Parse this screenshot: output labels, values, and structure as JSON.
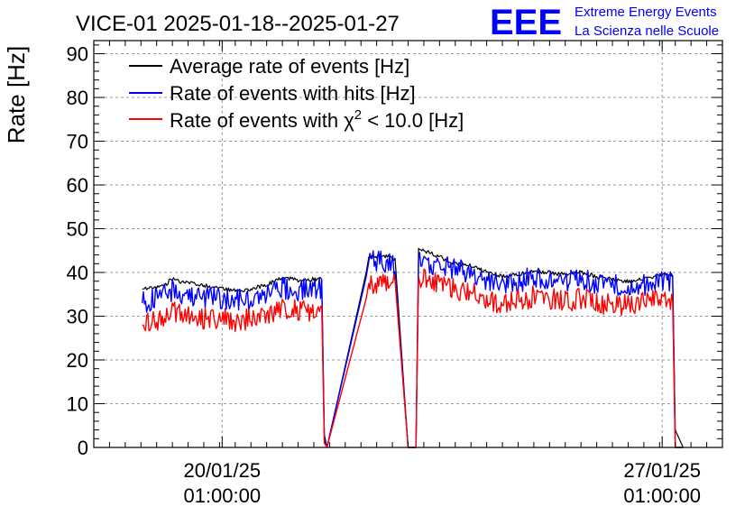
{
  "header": {
    "title": "VICE-01 2025-01-18--2025-01-27",
    "logo_text": "EEE",
    "logo_line1": "Extreme Energy Events",
    "logo_line2": "La Scienza nelle Scuole"
  },
  "colors": {
    "average": "#000000",
    "hits": "#0000ff",
    "chi2": "#ff0000",
    "grid": "#999999",
    "logo": "#0000ff"
  },
  "chart_data": {
    "type": "line",
    "title": "VICE-01 2025-01-18--2025-01-27",
    "xlabel": "",
    "ylabel": "Rate [Hz]",
    "ylim": [
      0,
      93
    ],
    "xlim": [
      "2025-01-18 00:00",
      "2025-01-28 00:00"
    ],
    "grid": true,
    "legend_position": "top-left",
    "yticks": [
      0,
      10,
      20,
      30,
      40,
      50,
      60,
      70,
      80,
      90
    ],
    "xticks": [
      {
        "x": "2025-01-20 01:00",
        "label_date": "20/01/25",
        "label_time": "01:00:00"
      },
      {
        "x": "2025-01-27 01:00",
        "label_date": "27/01/25",
        "label_time": "01:00:00"
      }
    ],
    "series": [
      {
        "name": "Average rate of events [Hz]",
        "color": "#000000",
        "points": [
          [
            "2025-01-18 18:30",
            36.2
          ],
          [
            "2025-01-19 00:00",
            36.5
          ],
          [
            "2025-01-19 03:00",
            37.0
          ],
          [
            "2025-01-19 06:00",
            38.6
          ],
          [
            "2025-01-19 10:00",
            37.8
          ],
          [
            "2025-01-19 16:00",
            37.2
          ],
          [
            "2025-01-20 00:00",
            36.4
          ],
          [
            "2025-01-20 06:00",
            35.8
          ],
          [
            "2025-01-20 12:00",
            36.3
          ],
          [
            "2025-01-20 18:00",
            37.2
          ],
          [
            "2025-01-21 00:00",
            38.7
          ],
          [
            "2025-01-21 06:00",
            38.3
          ],
          [
            "2025-01-21 12:00",
            38.5
          ],
          [
            "2025-01-21 15:00",
            38.8
          ],
          [
            "2025-01-21 16:00",
            3.0
          ],
          [
            "2025-01-21 17:00",
            0.0
          ],
          [
            "2025-01-22 08:00",
            40.0
          ],
          [
            "2025-01-22 09:00",
            43.5
          ],
          [
            "2025-01-22 14:00",
            43.8
          ],
          [
            "2025-01-22 19:00",
            43.2
          ],
          [
            "2025-01-23 00:00",
            0.0
          ],
          [
            "2025-01-23 03:00",
            0.0
          ],
          [
            "2025-01-23 04:00",
            45.5
          ],
          [
            "2025-01-23 12:00",
            43.5
          ],
          [
            "2025-01-23 18:00",
            42.0
          ],
          [
            "2025-01-24 00:00",
            41.5
          ],
          [
            "2025-01-24 06:00",
            40.0
          ],
          [
            "2025-01-24 12:00",
            39.2
          ],
          [
            "2025-01-24 18:00",
            39.5
          ],
          [
            "2025-01-25 00:00",
            40.3
          ],
          [
            "2025-01-25 06:00",
            40.0
          ],
          [
            "2025-01-25 12:00",
            39.5
          ],
          [
            "2025-01-25 18:00",
            40.0
          ],
          [
            "2025-01-26 00:00",
            39.0
          ],
          [
            "2025-01-26 06:00",
            38.5
          ],
          [
            "2025-01-26 12:00",
            38.0
          ],
          [
            "2025-01-26 18:00",
            38.5
          ],
          [
            "2025-01-27 00:00",
            39.5
          ],
          [
            "2025-01-27 05:00",
            39.5
          ],
          [
            "2025-01-27 06:00",
            4.0
          ],
          [
            "2025-01-27 09:00",
            0.0
          ]
        ]
      },
      {
        "name": "Rate of events with hits [Hz]",
        "color": "#0000ff",
        "points": [
          [
            "2025-01-18 18:30",
            33.0
          ],
          [
            "2025-01-19 00:00",
            34.0
          ],
          [
            "2025-01-19 03:00",
            35.0
          ],
          [
            "2025-01-19 06:00",
            36.0
          ],
          [
            "2025-01-19 10:00",
            35.0
          ],
          [
            "2025-01-19 16:00",
            34.5
          ],
          [
            "2025-01-20 00:00",
            34.0
          ],
          [
            "2025-01-20 06:00",
            33.5
          ],
          [
            "2025-01-20 12:00",
            34.0
          ],
          [
            "2025-01-20 18:00",
            35.0
          ],
          [
            "2025-01-21 00:00",
            36.5
          ],
          [
            "2025-01-21 06:00",
            36.0
          ],
          [
            "2025-01-21 12:00",
            35.8
          ],
          [
            "2025-01-21 15:00",
            36.5
          ],
          [
            "2025-01-21 16:00",
            2.0
          ],
          [
            "2025-01-21 17:00",
            0.0
          ],
          [
            "2025-01-22 08:00",
            39.0
          ],
          [
            "2025-01-22 09:00",
            42.5
          ],
          [
            "2025-01-22 14:00",
            42.5
          ],
          [
            "2025-01-22 19:00",
            42.0
          ],
          [
            "2025-01-23 00:00",
            0.0
          ],
          [
            "2025-01-23 03:00",
            0.0
          ],
          [
            "2025-01-23 04:00",
            43.0
          ],
          [
            "2025-01-23 12:00",
            41.5
          ],
          [
            "2025-01-23 18:00",
            40.5
          ],
          [
            "2025-01-24 00:00",
            40.0
          ],
          [
            "2025-01-24 06:00",
            38.5
          ],
          [
            "2025-01-24 12:00",
            37.5
          ],
          [
            "2025-01-24 18:00",
            37.8
          ],
          [
            "2025-01-25 00:00",
            39.0
          ],
          [
            "2025-01-25 06:00",
            38.5
          ],
          [
            "2025-01-25 12:00",
            38.0
          ],
          [
            "2025-01-25 18:00",
            38.5
          ],
          [
            "2025-01-26 00:00",
            37.5
          ],
          [
            "2025-01-26 06:00",
            37.0
          ],
          [
            "2025-01-26 12:00",
            36.8
          ],
          [
            "2025-01-26 18:00",
            37.0
          ],
          [
            "2025-01-27 00:00",
            38.0
          ],
          [
            "2025-01-27 05:00",
            38.0
          ],
          [
            "2025-01-27 06:00",
            0.0
          ],
          [
            "2025-01-27 09:00",
            0.0
          ]
        ]
      },
      {
        "name": "Rate of events with χ² < 10.0 [Hz]",
        "color": "#ff0000",
        "points": [
          [
            "2025-01-18 18:30",
            28.0
          ],
          [
            "2025-01-19 00:00",
            29.0
          ],
          [
            "2025-01-19 03:00",
            30.0
          ],
          [
            "2025-01-19 06:00",
            31.0
          ],
          [
            "2025-01-19 10:00",
            30.0
          ],
          [
            "2025-01-19 16:00",
            29.5
          ],
          [
            "2025-01-20 00:00",
            29.5
          ],
          [
            "2025-01-20 06:00",
            29.0
          ],
          [
            "2025-01-20 12:00",
            29.5
          ],
          [
            "2025-01-20 18:00",
            30.5
          ],
          [
            "2025-01-21 00:00",
            32.0
          ],
          [
            "2025-01-21 06:00",
            31.5
          ],
          [
            "2025-01-21 12:00",
            31.0
          ],
          [
            "2025-01-21 15:00",
            32.0
          ],
          [
            "2025-01-21 16:00",
            1.0
          ],
          [
            "2025-01-21 17:00",
            0.0
          ],
          [
            "2025-01-22 08:00",
            34.0
          ],
          [
            "2025-01-22 09:00",
            37.5
          ],
          [
            "2025-01-22 14:00",
            37.5
          ],
          [
            "2025-01-22 19:00",
            37.0
          ],
          [
            "2025-01-23 00:00",
            0.0
          ],
          [
            "2025-01-23 03:00",
            0.0
          ],
          [
            "2025-01-23 04:00",
            39.0
          ],
          [
            "2025-01-23 12:00",
            37.5
          ],
          [
            "2025-01-23 18:00",
            36.0
          ],
          [
            "2025-01-24 00:00",
            35.5
          ],
          [
            "2025-01-24 06:00",
            34.0
          ],
          [
            "2025-01-24 12:00",
            33.0
          ],
          [
            "2025-01-24 18:00",
            33.5
          ],
          [
            "2025-01-25 00:00",
            34.5
          ],
          [
            "2025-01-25 06:00",
            34.0
          ],
          [
            "2025-01-25 12:00",
            33.5
          ],
          [
            "2025-01-25 18:00",
            34.0
          ],
          [
            "2025-01-26 00:00",
            33.0
          ],
          [
            "2025-01-26 06:00",
            32.5
          ],
          [
            "2025-01-26 12:00",
            32.5
          ],
          [
            "2025-01-26 18:00",
            33.0
          ],
          [
            "2025-01-27 00:00",
            34.0
          ],
          [
            "2025-01-27 05:00",
            33.5
          ],
          [
            "2025-01-27 06:00",
            0.0
          ],
          [
            "2025-01-27 09:00",
            0.0
          ]
        ]
      }
    ]
  }
}
